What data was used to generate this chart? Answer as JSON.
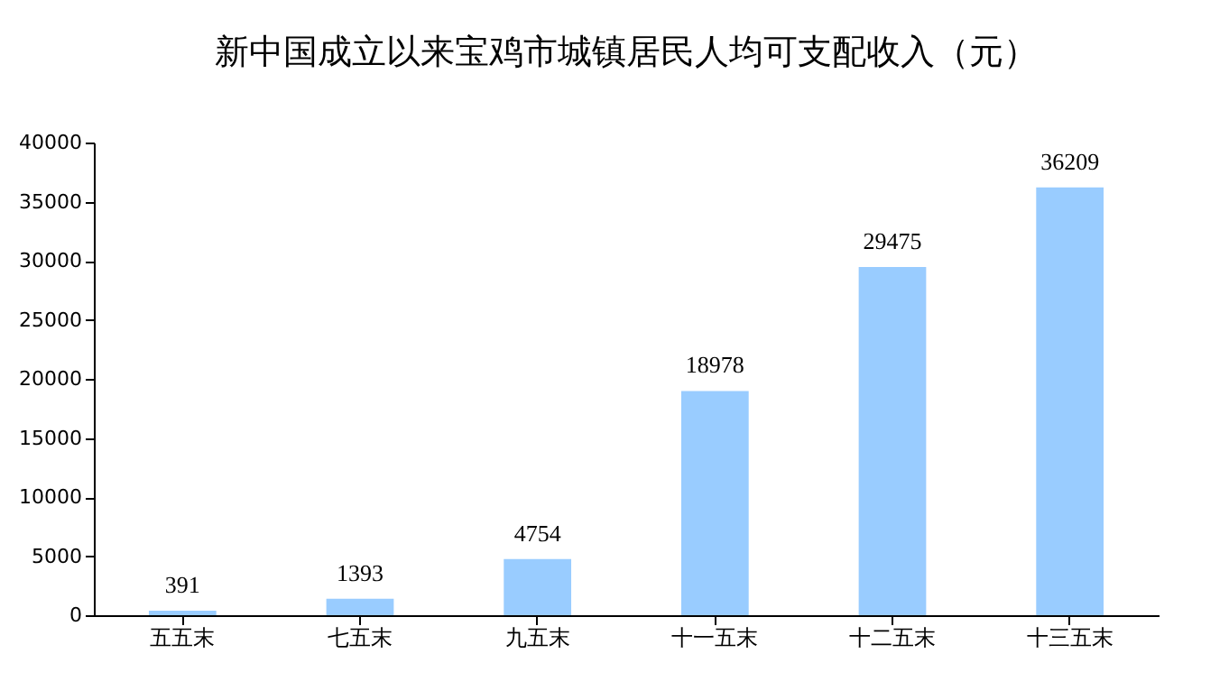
{
  "chart_data": {
    "type": "bar",
    "title": "新中国成立以来宝鸡市城镇居民人均可支配收入（元）",
    "categories": [
      "五五末",
      "七五末",
      "九五末",
      "十一五末",
      "十二五末",
      "十三五末"
    ],
    "values": [
      391,
      1393,
      4754,
      18978,
      29475,
      36209
    ],
    "color": "#99ccff",
    "ylim": [
      0,
      40000
    ],
    "yticks": [
      0,
      5000,
      10000,
      15000,
      20000,
      25000,
      30000,
      35000,
      40000
    ],
    "data_labels": true,
    "grid": false
  }
}
